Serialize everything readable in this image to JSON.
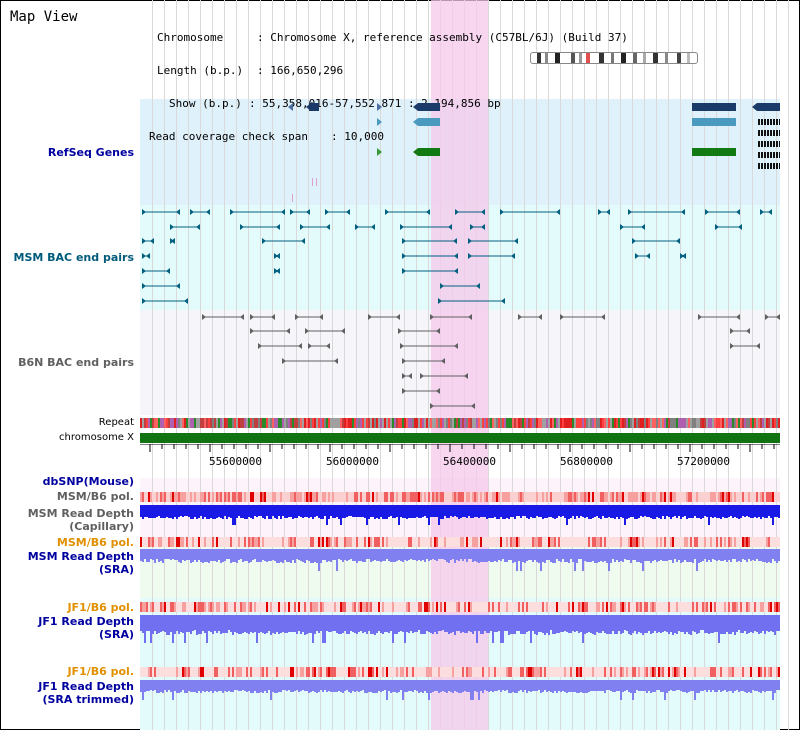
{
  "title": "Map View",
  "info": {
    "chromosome_key": "Chromosome",
    "chromosome_value": ": Chromosome X, reference assembly (C57BL/6J) (Build 37)",
    "length_key": "Length (b.p.)",
    "length_value": ": 166,650,296",
    "show_key": "Show (b.p.)",
    "show_value": ": 55,358,016-57,552,871 : 2,194,856 bp",
    "span_key": "Read coverage check span",
    "span_value": ": 10,000"
  },
  "tracks": {
    "refseq": "RefSeq Genes",
    "msm_bac": "MSM BAC end pairs",
    "b6n_bac": "B6N BAC end pairs",
    "repeat": "Repeat",
    "chromosome": "chromosome X",
    "dbsnp": "dbSNP(Mouse)",
    "msm_b6_pol_1": "MSM/B6 pol.",
    "msm_depth_cap_1": "MSM Read Depth",
    "msm_depth_cap_2": "(Capillary)",
    "msm_b6_pol_2": "MSM/B6 pol.",
    "msm_depth_sra_1": "MSM Read Depth",
    "msm_depth_sra_2": "(SRA)",
    "jf1_b6_pol_1": "JF1/B6 pol.",
    "jf1_depth_sra_1": "JF1 Read Depth",
    "jf1_depth_sra_2": "(SRA)",
    "jf1_b6_pol_2": "JF1/B6 pol.",
    "jf1_depth_trim_1": "JF1 Read Depth",
    "jf1_depth_trim_2": "(SRA trimmed)"
  },
  "axis": {
    "ticks": [
      "55600000",
      "56000000",
      "56400000",
      "56800000",
      "57200000"
    ]
  },
  "colors": {
    "refseq_bg": "#dff1fb",
    "bac_bg": "#e4fbfb",
    "b6n_bg": "#f5f5fa",
    "pink_highlight": "#f6c8ee",
    "label_blue": "#0000a0",
    "label_teal": "#005a7a",
    "label_gray": "#606060",
    "label_orange": "#e09000",
    "chromosome_green": "#127312"
  }
}
